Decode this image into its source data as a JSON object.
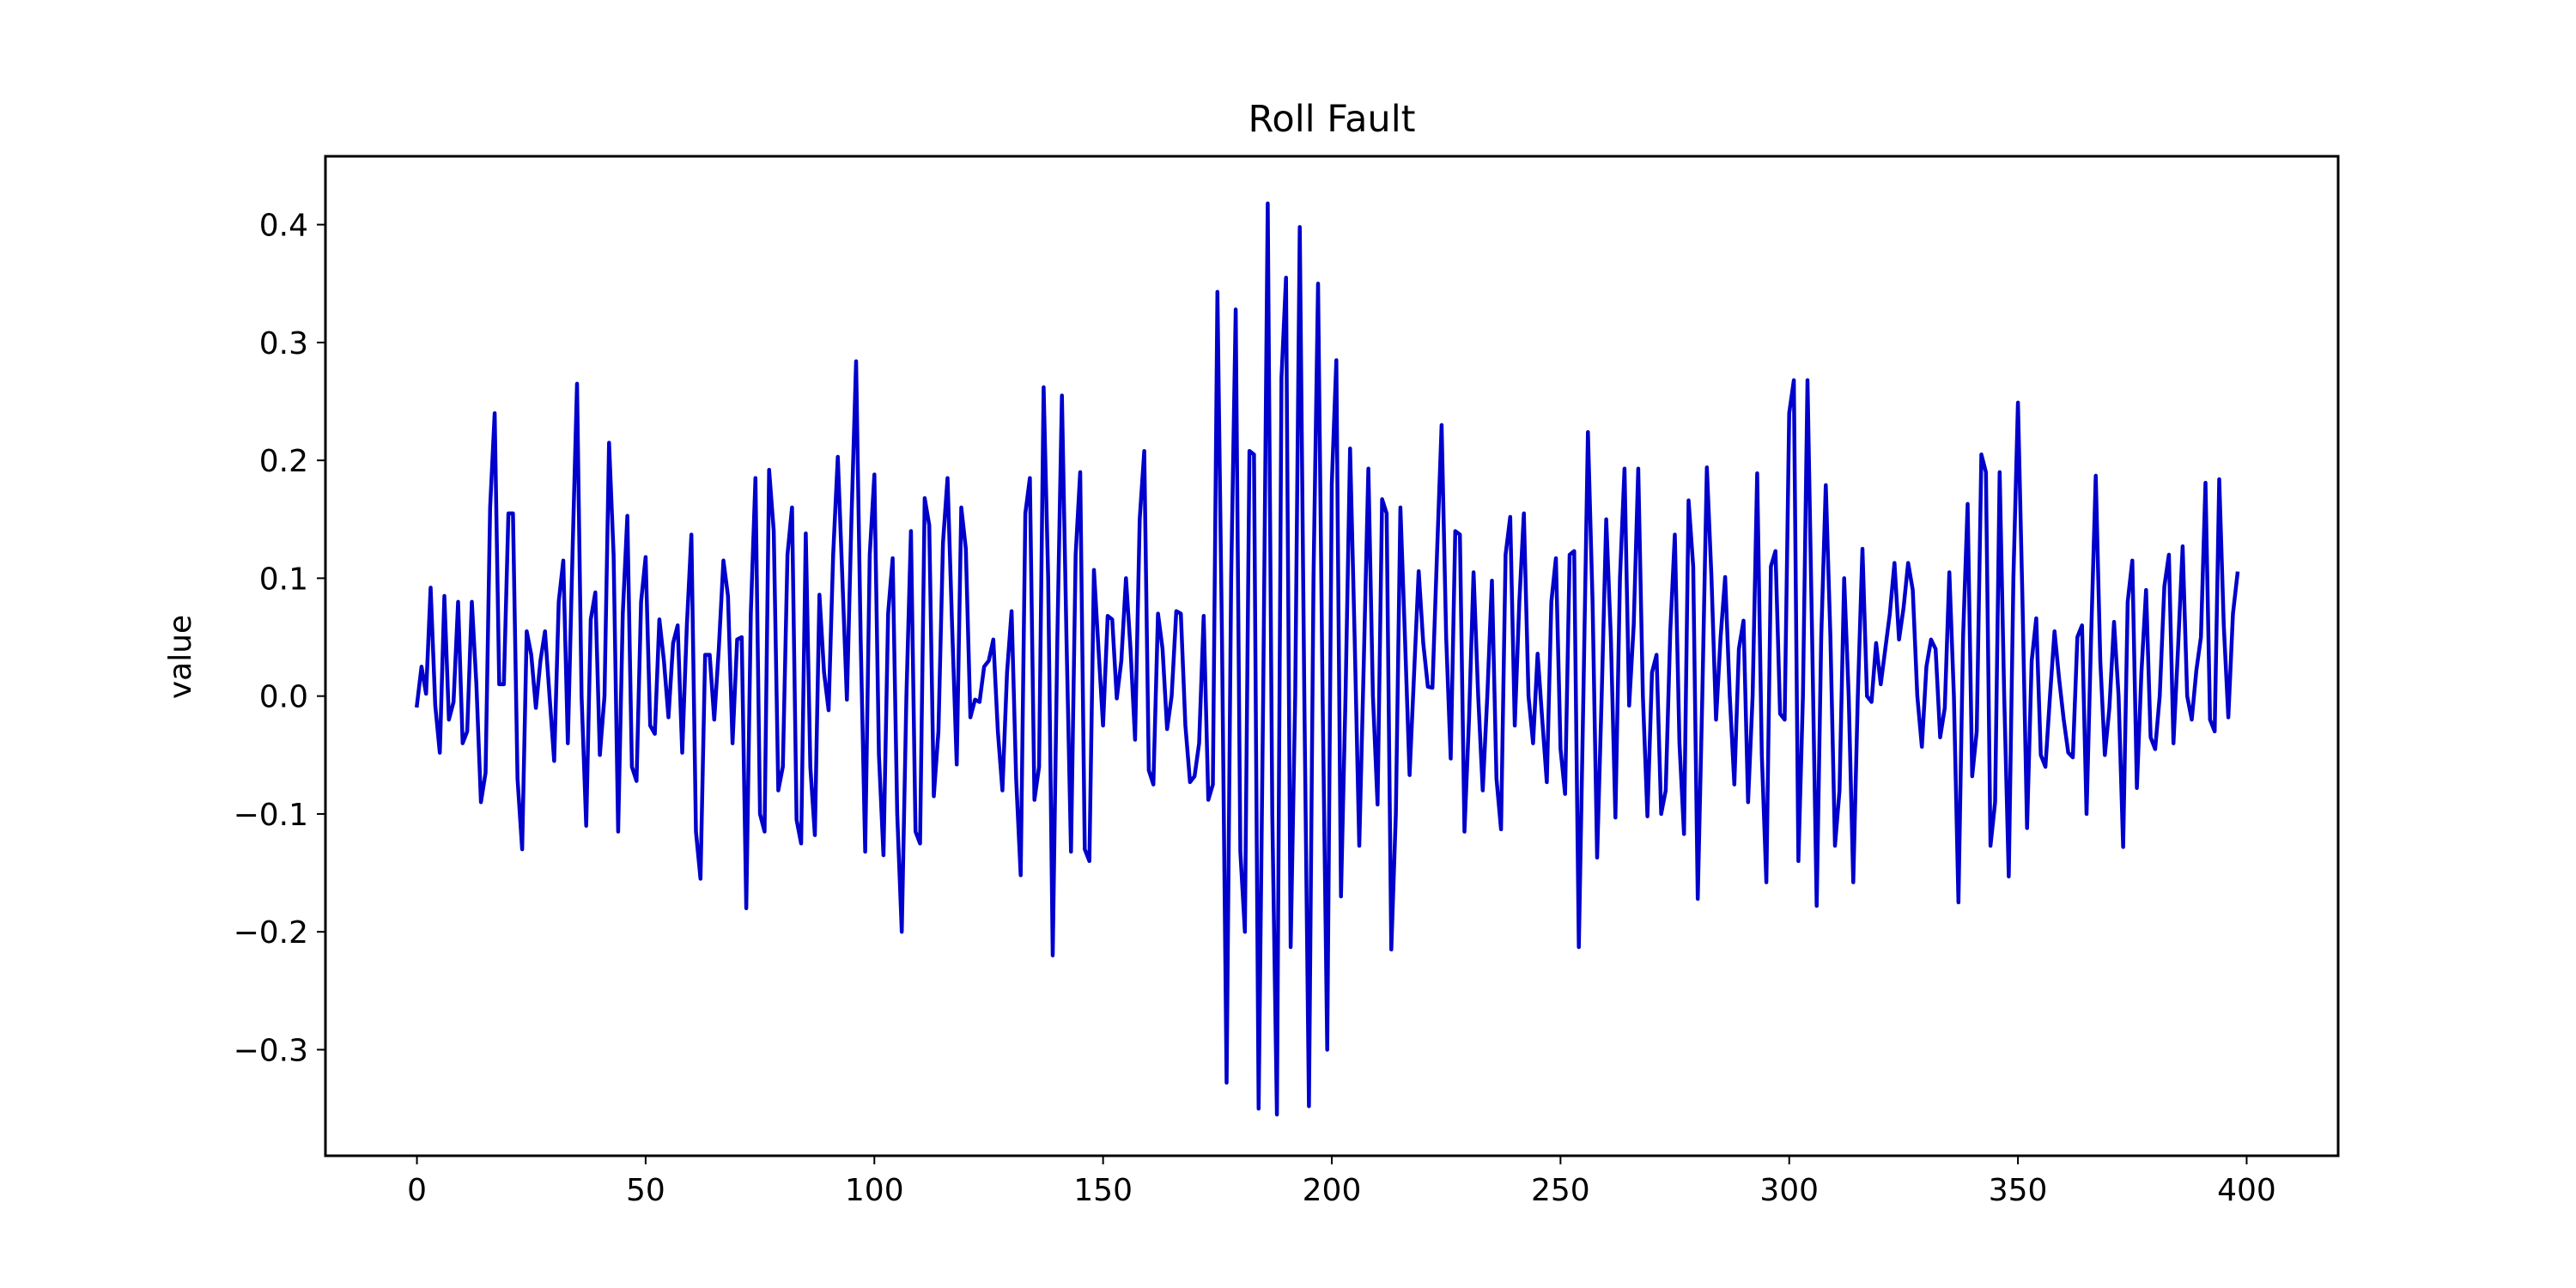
{
  "chart_data": {
    "type": "line",
    "title": "Roll Fault",
    "xlabel": "",
    "ylabel": "value",
    "xlim": [
      -20,
      420
    ],
    "ylim": [
      -0.39,
      0.458
    ],
    "xticks": [
      0,
      50,
      100,
      150,
      200,
      250,
      300,
      350,
      400
    ],
    "yticks": [
      -0.3,
      -0.2,
      -0.1,
      0.0,
      0.1,
      0.2,
      0.3,
      0.4
    ],
    "xtick_labels": [
      "0",
      "50",
      "100",
      "150",
      "200",
      "250",
      "300",
      "350",
      "400"
    ],
    "ytick_labels": [
      "−0.3",
      "−0.2",
      "−0.1",
      "0.0",
      "0.1",
      "0.2",
      "0.3",
      "0.4"
    ],
    "grid": false,
    "series": [
      {
        "color": "#0000cc",
        "values": [
          -0.008,
          0.025,
          0.002,
          0.092,
          -0.008,
          -0.048,
          0.085,
          -0.02,
          -0.005,
          0.08,
          -0.04,
          -0.03,
          0.08,
          0.01,
          -0.09,
          -0.065,
          0.16,
          0.24,
          0.01,
          0.01,
          0.155,
          0.155,
          -0.07,
          -0.13,
          0.055,
          0.035,
          -0.01,
          0.03,
          0.055,
          0.0,
          -0.055,
          0.08,
          0.115,
          -0.04,
          0.12,
          0.265,
          0.0,
          -0.11,
          0.065,
          0.088,
          -0.05,
          0.0,
          0.215,
          0.12,
          -0.115,
          0.07,
          0.153,
          -0.06,
          -0.072,
          0.08,
          0.118,
          -0.025,
          -0.032,
          0.065,
          0.03,
          -0.018,
          0.045,
          0.06,
          -0.048,
          0.06,
          0.137,
          -0.115,
          -0.155,
          0.035,
          0.035,
          -0.02,
          0.04,
          0.115,
          0.085,
          -0.04,
          0.048,
          0.05,
          -0.18,
          0.07,
          0.185,
          -0.1,
          -0.115,
          0.192,
          0.14,
          -0.08,
          -0.06,
          0.12,
          0.16,
          -0.105,
          -0.125,
          0.138,
          -0.06,
          -0.118,
          0.086,
          0.02,
          -0.012,
          0.12,
          0.203,
          0.1,
          -0.003,
          0.15,
          0.284,
          0.05,
          -0.132,
          0.12,
          0.188,
          -0.05,
          -0.135,
          0.07,
          0.117,
          -0.1,
          -0.2,
          0.0,
          0.14,
          -0.115,
          -0.125,
          0.168,
          0.145,
          -0.085,
          -0.03,
          0.13,
          0.185,
          0.06,
          -0.058,
          0.16,
          0.125,
          -0.018,
          -0.003,
          -0.005,
          0.025,
          0.03,
          0.048,
          -0.03,
          -0.08,
          0.02,
          0.072,
          -0.07,
          -0.152,
          0.155,
          0.185,
          -0.088,
          -0.06,
          0.262,
          0.1,
          -0.22,
          0.05,
          0.255,
          0.05,
          -0.132,
          0.12,
          0.19,
          -0.13,
          -0.14,
          0.107,
          0.04,
          -0.025,
          0.068,
          0.065,
          -0.002,
          0.03,
          0.1,
          0.04,
          -0.037,
          0.15,
          0.208,
          -0.063,
          -0.075,
          0.07,
          0.04,
          -0.028,
          0.0,
          0.072,
          0.07,
          -0.025,
          -0.073,
          -0.068,
          -0.04,
          0.068,
          -0.088,
          -0.075,
          0.343,
          0.05,
          -0.328,
          0.1,
          0.328,
          -0.132,
          -0.2,
          0.208,
          0.205,
          -0.35,
          0.0,
          0.418,
          -0.1,
          -0.355,
          0.27,
          0.355,
          -0.213,
          0.0,
          0.398,
          0.0,
          -0.348,
          0.1,
          0.35,
          0.0,
          -0.3,
          0.18,
          0.285,
          -0.17,
          0.0,
          0.21,
          0.05,
          -0.127,
          0.03,
          0.193,
          0.0,
          -0.092,
          0.167,
          0.155,
          -0.215,
          -0.1,
          0.16,
          0.05,
          -0.067,
          0.02,
          0.106,
          0.045,
          0.008,
          0.007,
          0.12,
          0.23,
          0.05,
          -0.053,
          0.14,
          0.137,
          -0.115,
          -0.02,
          0.105,
          0.0,
          -0.08,
          0.0,
          0.098,
          -0.07,
          -0.113,
          0.12,
          0.152,
          -0.025,
          0.08,
          0.155,
          0.0,
          -0.04,
          0.036,
          -0.02,
          -0.073,
          0.08,
          0.117,
          -0.045,
          -0.083,
          0.12,
          0.123,
          -0.213,
          0.0,
          0.224,
          0.08,
          -0.137,
          0.0,
          0.15,
          0.05,
          -0.103,
          0.1,
          0.193,
          -0.008,
          0.06,
          0.193,
          0.0,
          -0.102,
          0.02,
          0.035,
          -0.1,
          -0.08,
          0.055,
          0.137,
          -0.04,
          -0.117,
          0.166,
          0.11,
          -0.172,
          0.0,
          0.194,
          0.1,
          -0.02,
          0.05,
          0.101,
          0.0,
          -0.075,
          0.04,
          0.064,
          -0.09,
          0.0,
          0.189,
          -0.05,
          -0.158,
          0.11,
          0.123,
          -0.015,
          -0.02,
          0.24,
          0.268,
          -0.14,
          0.0,
          0.268,
          0.05,
          -0.178,
          0.05,
          0.179,
          0.05,
          -0.127,
          -0.08,
          0.1,
          0.0,
          -0.158,
          0.0,
          0.125,
          0.0,
          -0.005,
          0.045,
          0.01,
          0.04,
          0.07,
          0.113,
          0.048,
          0.075,
          0.113,
          0.09,
          0.0,
          -0.043,
          0.025,
          0.048,
          0.04,
          -0.035,
          -0.01,
          0.105,
          0.0,
          -0.175,
          0.05,
          0.163,
          -0.068,
          -0.03,
          0.205,
          0.19,
          -0.127,
          -0.09,
          0.19,
          0.0,
          -0.153,
          0.1,
          0.249,
          0.08,
          -0.112,
          0.03,
          0.066,
          -0.05,
          -0.06,
          0.0,
          0.055,
          0.015,
          -0.02,
          -0.048,
          -0.052,
          0.05,
          0.06,
          -0.1,
          0.05,
          0.187,
          0.03,
          -0.05,
          -0.01,
          0.063,
          0.0,
          -0.128,
          0.08,
          0.115,
          -0.078,
          0.02,
          0.09,
          -0.035,
          -0.045,
          0.0,
          0.093,
          0.12,
          -0.04,
          0.04,
          0.127,
          0.0,
          -0.02,
          0.022,
          0.05,
          0.181,
          -0.02,
          -0.03,
          0.184,
          0.06,
          -0.018,
          0.07,
          0.104
        ]
      }
    ]
  }
}
